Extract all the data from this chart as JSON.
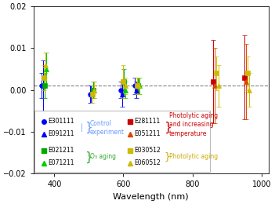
{
  "title": "",
  "xlabel": "Wavelength (nm)",
  "ylabel": "",
  "ylim": [
    -0.02,
    0.02
  ],
  "xlim": [
    340,
    1020
  ],
  "dashed_line_y": 0.001,
  "series": [
    {
      "label": "E301111",
      "marker": "o",
      "color": "#0000ff",
      "group": "control",
      "x": [
        370,
        510,
        600,
        640
      ],
      "y": [
        0.001,
        -0.001,
        0.0,
        0.001
      ],
      "yerr": [
        0.003,
        0.002,
        0.002,
        0.002
      ],
      "xoff": -7
    },
    {
      "label": "E091211",
      "marker": "^",
      "color": "#0000ff",
      "group": "control",
      "x": [
        370,
        510,
        600,
        640
      ],
      "y": [
        0.001,
        -0.001,
        -0.001,
        0.0
      ],
      "yerr": [
        0.006,
        0.002,
        0.003,
        0.002
      ],
      "xoff": -3
    },
    {
      "label": "E021211",
      "marker": "s",
      "color": "#00aa00",
      "group": "o3",
      "x": [
        370,
        510,
        600,
        640
      ],
      "y": [
        0.001,
        0.0,
        0.002,
        0.001
      ],
      "yerr": [
        0.003,
        0.002,
        0.003,
        0.002
      ],
      "xoff": 2
    },
    {
      "label": "E071211",
      "marker": "^",
      "color": "#00cc00",
      "group": "o3",
      "x": [
        370,
        510,
        600,
        640
      ],
      "y": [
        0.005,
        0.0,
        0.0,
        0.001
      ],
      "yerr": [
        0.004,
        0.002,
        0.002,
        0.002
      ],
      "xoff": 6
    },
    {
      "label": "E281111",
      "marker": "s",
      "color": "#cc0000",
      "group": "photo_temp",
      "x": [
        870,
        960
      ],
      "y": [
        0.002,
        0.003
      ],
      "yerr": [
        0.01,
        0.01
      ],
      "xoff": -10
    },
    {
      "label": "E051211",
      "marker": "^",
      "color": "#dd4400",
      "group": "photo_temp",
      "x": [
        870,
        960
      ],
      "y": [
        0.001,
        0.002
      ],
      "yerr": [
        0.009,
        0.009
      ],
      "xoff": -5
    },
    {
      "label": "E030512",
      "marker": "s",
      "color": "#ccbb00",
      "group": "photo",
      "x": [
        370,
        510,
        600,
        640,
        870,
        960
      ],
      "y": [
        0.003,
        -0.001,
        0.002,
        0.001,
        0.004,
        0.004
      ],
      "yerr": [
        0.003,
        0.002,
        0.004,
        0.002,
        0.004,
        0.004
      ],
      "xoff": 0
    },
    {
      "label": "E060512",
      "marker": "^",
      "color": "#ccbb00",
      "group": "photo",
      "x": [
        370,
        510,
        600,
        640,
        870,
        960
      ],
      "y": [
        0.006,
        0.0,
        0.001,
        0.001,
        0.001,
        0.0
      ],
      "yerr": [
        0.003,
        0.002,
        0.002,
        0.002,
        0.005,
        0.004
      ],
      "xoff": 5
    }
  ],
  "bg_color": "#ffffff"
}
